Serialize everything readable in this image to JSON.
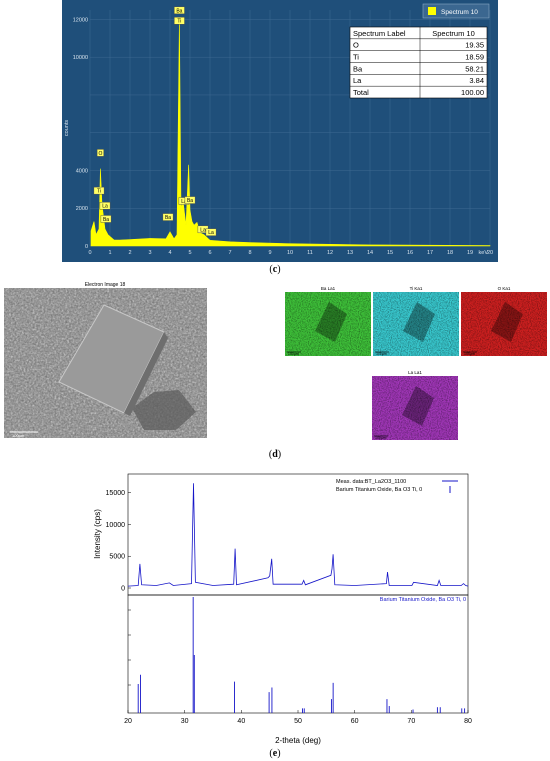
{
  "panel_c": {
    "caption": "c",
    "legend": "Spectrum 10",
    "table": {
      "headers": [
        "Spectrum Label",
        "Spectrum 10"
      ],
      "rows": [
        [
          "O",
          "19.35"
        ],
        [
          "Ti",
          "18.59"
        ],
        [
          "Ba",
          "58.21"
        ],
        [
          "La",
          "3.84"
        ],
        [
          "Total",
          "100.00"
        ]
      ]
    },
    "peak_labels": [
      "Ba",
      "Ti",
      "O",
      "Ti",
      "La",
      "Ba",
      "Ba",
      "La",
      "Ba",
      "La",
      "La"
    ]
  },
  "panel_d": {
    "caption": "d",
    "electron_title": "Electron Image 18",
    "electron_scale": "100µm",
    "maps": [
      {
        "title": "Ba La1",
        "color": "#3fc23a",
        "scale": "100µm"
      },
      {
        "title": "Ti Ka1",
        "color": "#39c9cf",
        "scale": "100µm"
      },
      {
        "title": "O Ka1",
        "color": "#cf2020",
        "scale": "100µm"
      },
      {
        "title": "La La1",
        "color": "#a137b8",
        "scale": "100µm"
      }
    ]
  },
  "panel_e": {
    "caption": "e",
    "ylabel": "Intensity (cps)",
    "xlabel": "2-theta (deg)",
    "legend": [
      "Meas. data:BT_La2O3_1100",
      "Barium Titanium Oxide, Ba O3 Ti, 0"
    ],
    "ref_label": "Barium Titanium Oxide, Ba O3 Ti, 0"
  },
  "chart_data": [
    {
      "type": "area",
      "xlabel": "keV",
      "ylabel": "counts",
      "xlim": [
        0,
        20
      ],
      "ylim": [
        0,
        12500
      ],
      "xticks": [
        0,
        1,
        2,
        3,
        4,
        5,
        6,
        7,
        8,
        9,
        10,
        11,
        12,
        13,
        14,
        15,
        16,
        17,
        18,
        19,
        20
      ],
      "yticks": [
        0,
        2000,
        4000,
        10000,
        12000
      ],
      "series": [
        {
          "name": "Spectrum 10",
          "x": [
            0.05,
            0.2,
            0.3,
            0.45,
            0.52,
            0.6,
            0.75,
            0.9,
            1.2,
            1.5,
            2.0,
            3.0,
            3.8,
            4.0,
            4.2,
            4.35,
            4.47,
            4.51,
            4.55,
            4.65,
            4.8,
            4.93,
            5.0,
            5.1,
            5.2,
            5.35,
            5.5,
            5.7,
            6.0,
            6.5,
            7.0,
            8.0,
            10.0,
            14.0,
            20.0
          ],
          "y": [
            800,
            1300,
            600,
            900,
            4100,
            2200,
            900,
            600,
            320,
            320,
            340,
            400,
            380,
            750,
            380,
            600,
            12100,
            7000,
            2000,
            2400,
            1100,
            4300,
            1900,
            1300,
            1100,
            1250,
            700,
            600,
            300,
            260,
            220,
            180,
            120,
            60,
            20
          ]
        }
      ]
    },
    {
      "type": "line",
      "xlabel": "2-theta (deg)",
      "ylabel": "Intensity (cps)",
      "xlim": [
        20,
        80
      ],
      "ylim": [
        0,
        17000
      ],
      "xticks": [
        20,
        30,
        40,
        50,
        60,
        70,
        80
      ],
      "yticks": [
        0,
        5000,
        10000,
        15000
      ],
      "series": [
        {
          "name": "Meas. data:BT_La2O3_1100",
          "x": [
            20,
            21.8,
            22.1,
            22.4,
            25,
            27.3,
            28,
            31.2,
            31.55,
            31.9,
            35,
            38.65,
            38.9,
            39.15,
            44.7,
            45.0,
            45.35,
            45.6,
            50.7,
            51.0,
            51.3,
            55.8,
            56.0,
            56.2,
            56.5,
            60,
            65.6,
            65.8,
            66.1,
            70.1,
            70.4,
            74.6,
            74.9,
            75.2,
            78.8,
            79.2,
            79.6,
            80
          ],
          "y": [
            300,
            400,
            3800,
            500,
            400,
            800,
            400,
            700,
            16500,
            900,
            400,
            600,
            6200,
            500,
            1600,
            1900,
            4600,
            600,
            600,
            1200,
            500,
            2000,
            3000,
            5300,
            500,
            400,
            700,
            2500,
            400,
            400,
            900,
            400,
            1200,
            400,
            400,
            700,
            400,
            300
          ]
        },
        {
          "name": "Barium Titanium Oxide, Ba O3 Ti, 0",
          "sticks": [
            [
              21.8,
              25
            ],
            [
              22.2,
              33
            ],
            [
              31.5,
              100
            ],
            [
              31.7,
              50
            ],
            [
              38.8,
              27
            ],
            [
              44.9,
              18
            ],
            [
              45.4,
              22
            ],
            [
              50.8,
              4
            ],
            [
              51.1,
              4
            ],
            [
              55.9,
              12
            ],
            [
              56.2,
              26
            ],
            [
              65.7,
              12
            ],
            [
              66.1,
              6
            ],
            [
              70.3,
              3
            ],
            [
              74.6,
              5
            ],
            [
              75.1,
              5
            ],
            [
              78.9,
              4
            ],
            [
              79.4,
              4
            ]
          ]
        }
      ]
    }
  ]
}
